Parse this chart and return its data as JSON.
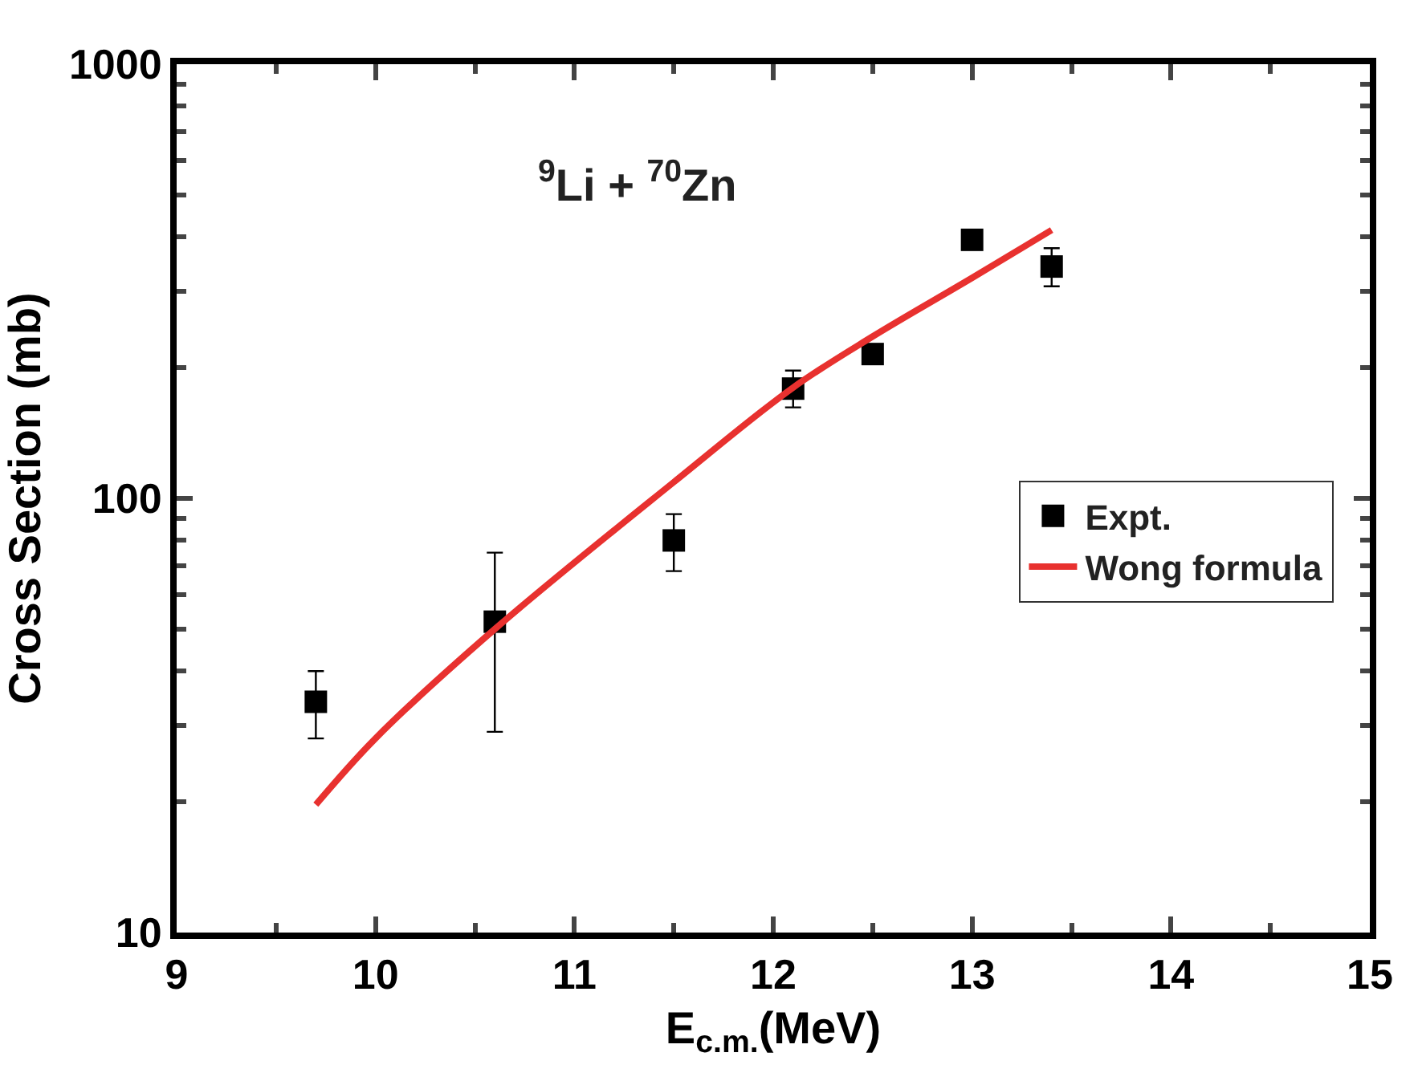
{
  "chart_data": {
    "type": "scatter",
    "xlabel": "E$_{c.m.}$(MeV)",
    "ylabel": "Cross Section (mb)",
    "annotations": [
      "$^{9}$Li + $^{70}$Zn"
    ],
    "log": "y",
    "xlim": [
      9,
      15
    ],
    "xticks": [
      9,
      10,
      11,
      12,
      13,
      14,
      15
    ],
    "ylim": [
      10,
      1000
    ],
    "yticks": [
      10,
      100,
      1000
    ],
    "grid": false,
    "legend": "right",
    "marker": "square",
    "series": [
      {
        "name": "Expt.",
        "color": "#000000",
        "x": [
          9.7,
          10.6,
          11.5,
          12.1,
          12.5,
          13.0,
          13.4
        ],
        "values": [
          34,
          52,
          80,
          179,
          215,
          394,
          342
        ],
        "errors": [
          [
            28,
            40
          ],
          [
            29,
            75
          ],
          [
            68,
            92
          ],
          [
            162,
            197
          ],
          null,
          null,
          [
            308,
            377
          ]
        ]
      },
      {
        "name": "Wong formula",
        "type": "line",
        "color": "#e8312f",
        "marker": "none",
        "line_style": "solid",
        "x": [
          9.7,
          10.0,
          10.6,
          11.5,
          12.1,
          12.5,
          13.0,
          13.4
        ],
        "values": [
          19.7,
          28,
          50,
          109,
          180,
          236,
          322,
          415
        ]
      }
    ]
  }
}
